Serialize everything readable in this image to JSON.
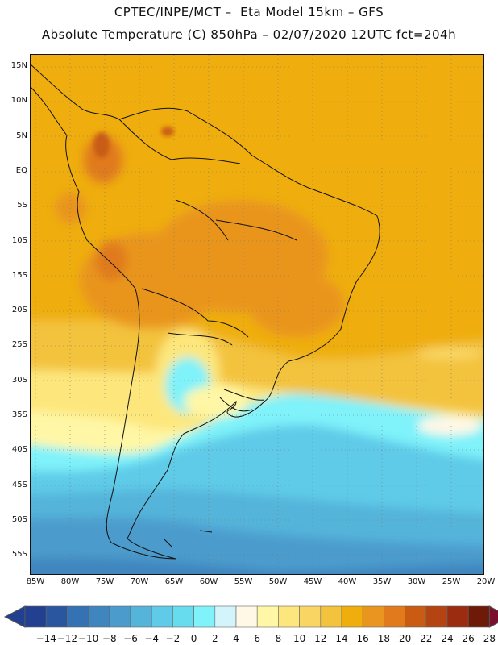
{
  "header": {
    "line1": "CPTEC/INPE/MCT –  Eta Model 15km – GFS",
    "line2": "Absolute Temperature (C) 850hPa – 02/07/2020 12UTC fct=204h"
  },
  "map": {
    "lat_labels": [
      "15N",
      "10N",
      "5N",
      "EQ",
      "5S",
      "10S",
      "15S",
      "20S",
      "25S",
      "30S",
      "35S",
      "40S",
      "45S",
      "50S",
      "55S"
    ],
    "lon_labels": [
      "85W",
      "80W",
      "75W",
      "70W",
      "65W",
      "60W",
      "55W",
      "50W",
      "45W",
      "40W",
      "35W",
      "30W",
      "25W",
      "20W"
    ]
  },
  "colorbar": {
    "ticks": [
      "-14",
      "-12",
      "-10",
      "-8",
      "-6",
      "-4",
      "-2",
      "0",
      "2",
      "4",
      "6",
      "8",
      "10",
      "12",
      "14",
      "16",
      "18",
      "20",
      "22",
      "24",
      "26",
      "28"
    ],
    "colors": [
      "#233f8f",
      "#2a56a0",
      "#3572b4",
      "#3f86bf",
      "#4b9ccd",
      "#55b4da",
      "#5fcbe8",
      "#66dcee",
      "#7ff2fa",
      "#d2f4fa",
      "#fff8e6",
      "#fff7a6",
      "#fde77d",
      "#f9d663",
      "#f3c33d",
      "#efae0c",
      "#e9951f",
      "#e07a1d",
      "#c95b12",
      "#b44512",
      "#9c2c10",
      "#6d1a08"
    ],
    "under_color": "#233f8f",
    "over_color": "#7a0f2f"
  }
}
